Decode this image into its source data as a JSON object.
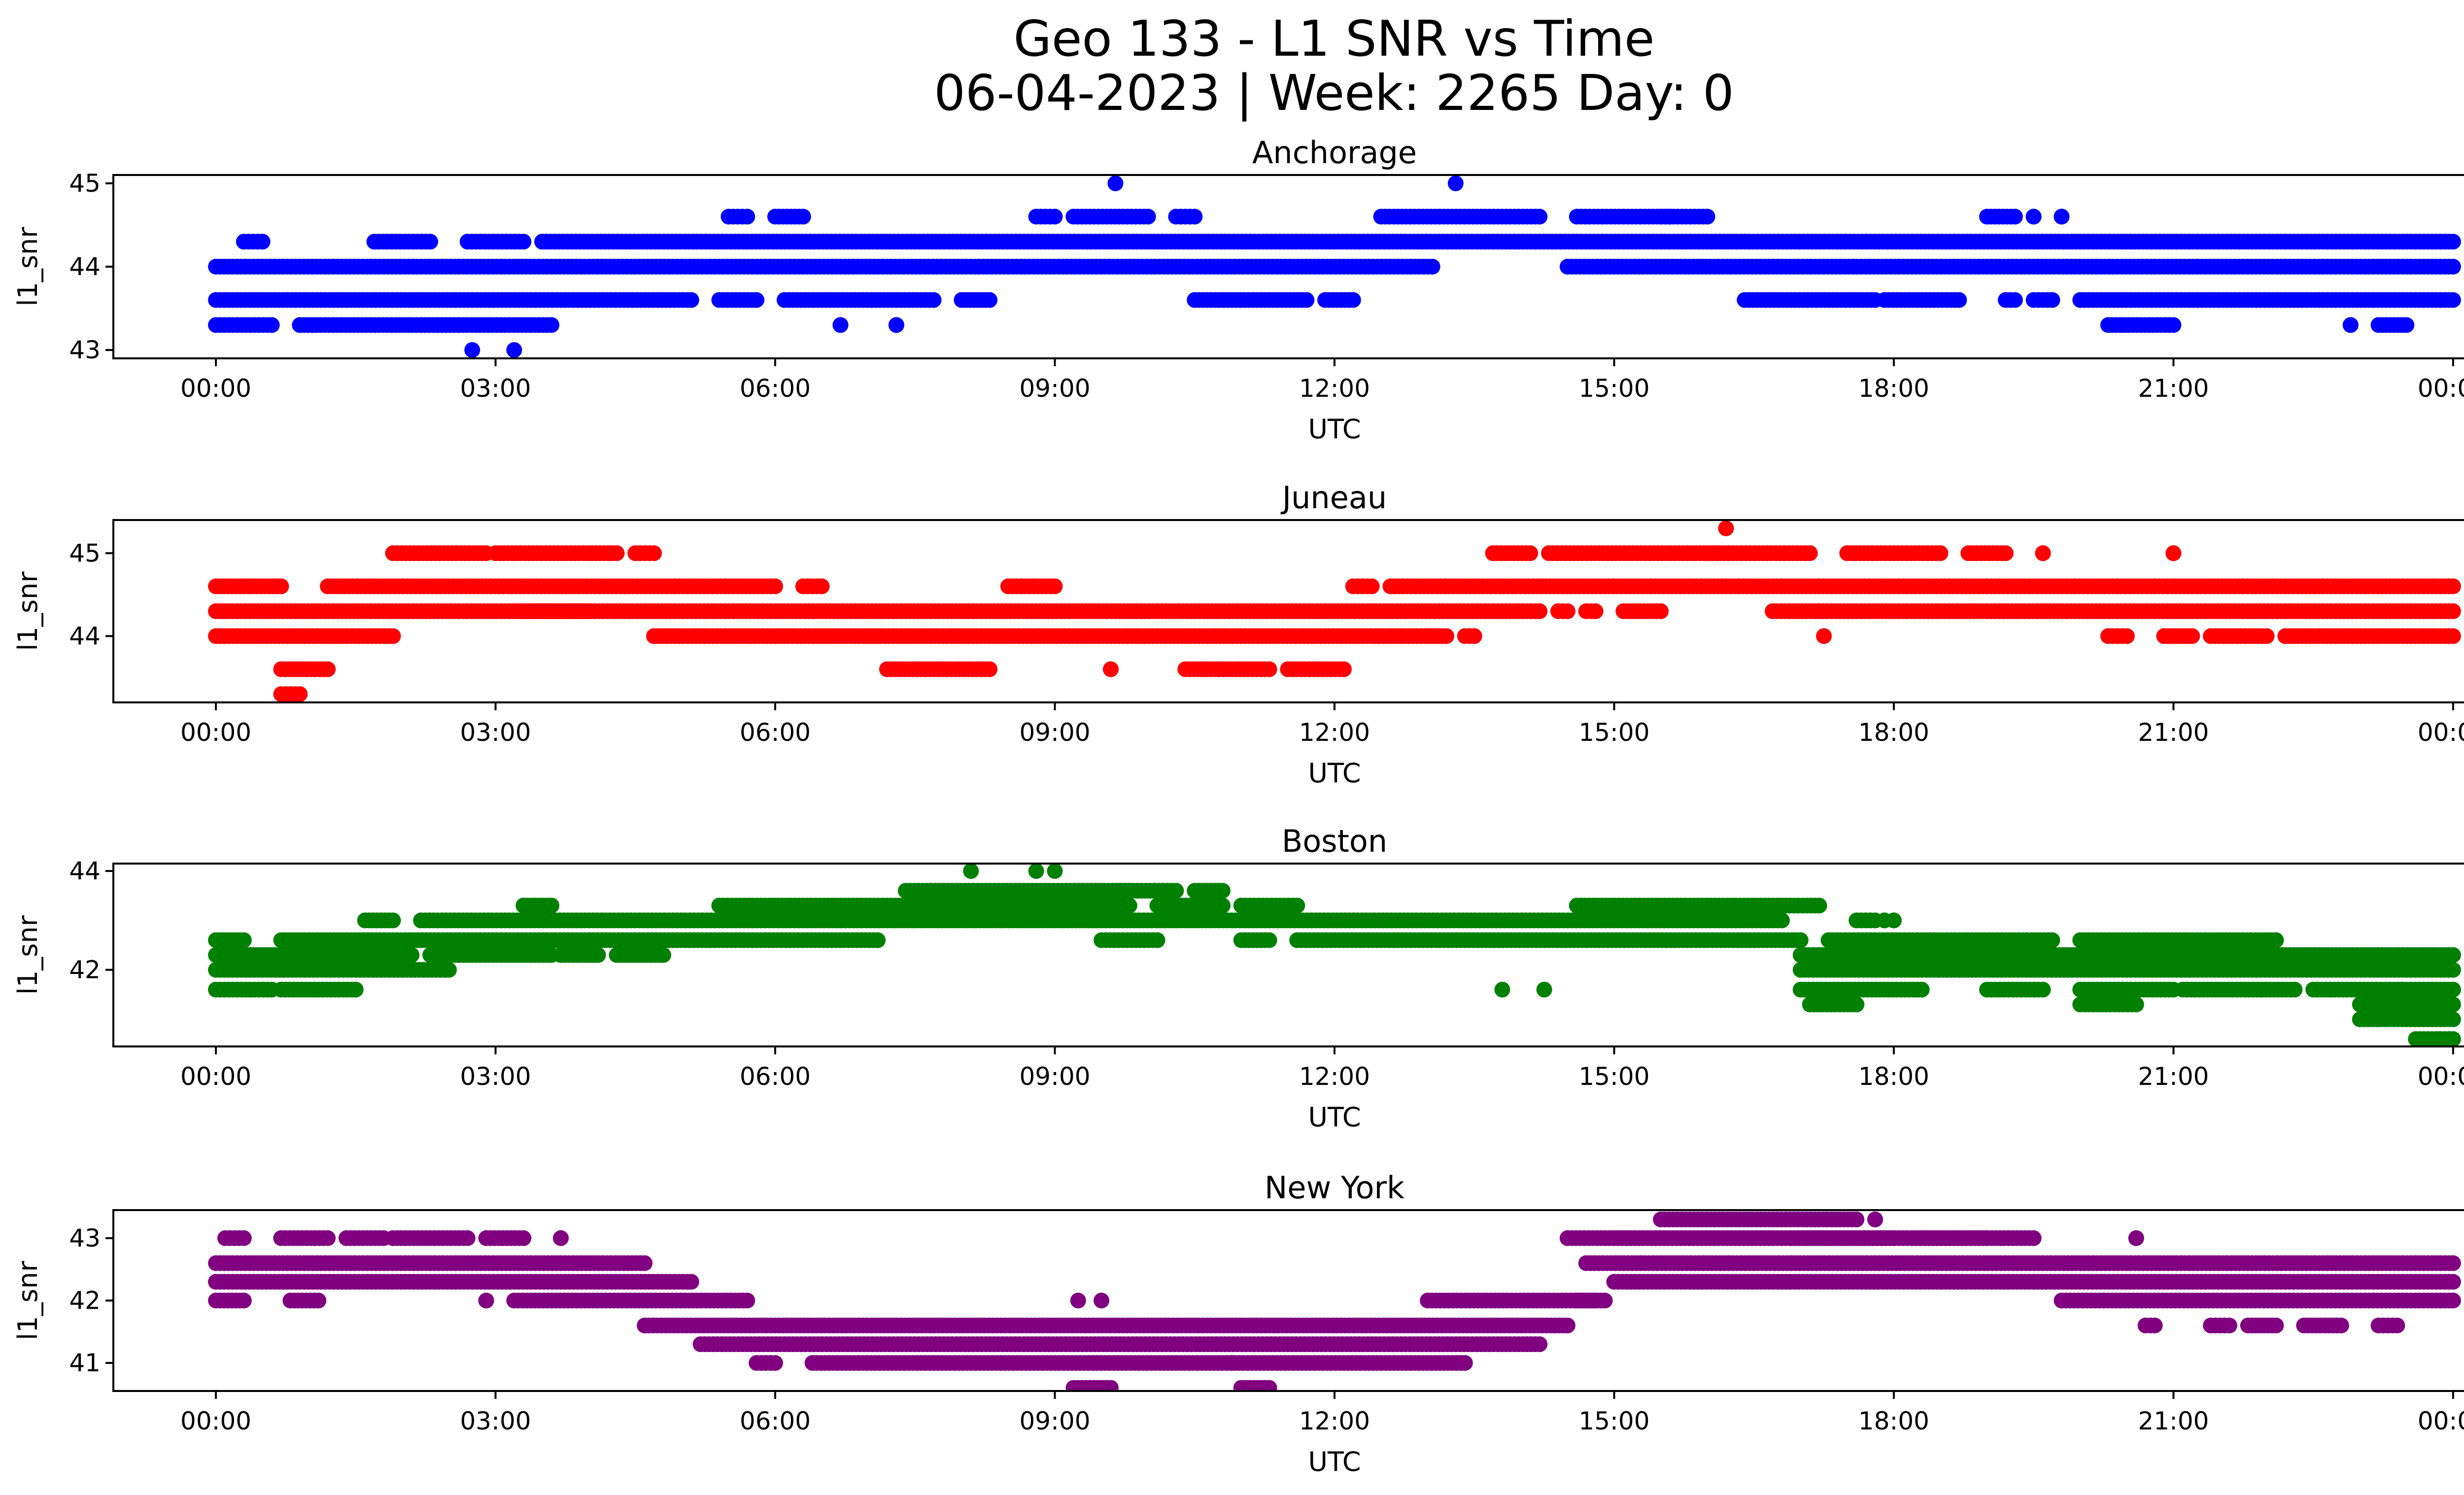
{
  "figure": {
    "title_line1": "Geo 133 - L1 SNR vs Time",
    "title_line2": "06-04-2023 | Week: 2265 Day: 0"
  },
  "chart_data": [
    {
      "type": "scatter",
      "title": "Anchorage",
      "xlabel": "UTC",
      "ylabel": "l1_snr",
      "color": "#0000ff",
      "xlim_hours": [
        -1.1,
        25.1
      ],
      "ylim": [
        42.9,
        45.1
      ],
      "x_ticks": [
        "00:00",
        "03:00",
        "06:00",
        "09:00",
        "12:00",
        "15:00",
        "18:00",
        "21:00",
        "00:00"
      ],
      "y_ticks": [
        43,
        44,
        45
      ],
      "bands": [
        {
          "y": 43.3,
          "segments": [
            [
              0.0,
              0.6
            ],
            [
              0.9,
              2.6
            ],
            [
              2.2,
              3.6
            ],
            [
              6.7,
              6.7
            ],
            [
              7.3,
              7.3
            ],
            [
              20.3,
              21.0
            ],
            [
              22.9,
              22.9
            ],
            [
              23.2,
              23.5
            ]
          ]
        },
        {
          "y": 43.6,
          "segments": [
            [
              0.0,
              5.1
            ],
            [
              5.4,
              5.8
            ],
            [
              6.1,
              7.7
            ],
            [
              8.0,
              8.3
            ],
            [
              10.5,
              11.7
            ],
            [
              11.9,
              12.2
            ],
            [
              16.4,
              17.8
            ],
            [
              17.9,
              18.7
            ],
            [
              19.2,
              19.3
            ],
            [
              19.5,
              19.7
            ],
            [
              20.0,
              24.0
            ]
          ]
        },
        {
          "y": 44.0,
          "segments": [
            [
              0.0,
              13.0
            ],
            [
              14.5,
              24.0
            ]
          ]
        },
        {
          "y": 44.3,
          "segments": [
            [
              0.3,
              0.5
            ],
            [
              1.7,
              2.3
            ],
            [
              2.7,
              3.3
            ],
            [
              3.5,
              24.0
            ]
          ]
        },
        {
          "y": 44.6,
          "segments": [
            [
              5.5,
              5.7
            ],
            [
              6.0,
              6.3
            ],
            [
              8.8,
              9.0
            ],
            [
              9.2,
              10.0
            ],
            [
              10.3,
              10.5
            ],
            [
              12.5,
              14.2
            ],
            [
              14.6,
              15.6
            ],
            [
              15.5,
              16.0
            ],
            [
              19.0,
              19.3
            ],
            [
              19.5,
              19.5
            ],
            [
              19.8,
              19.8
            ]
          ]
        }
      ],
      "points": [
        {
          "x": 2.75,
          "y": 43.0
        },
        {
          "x": 3.2,
          "y": 43.0
        },
        {
          "x": 9.65,
          "y": 45.0
        },
        {
          "x": 13.3,
          "y": 45.0
        },
        {
          "x": 13.05,
          "y": 44.0
        }
      ]
    },
    {
      "type": "scatter",
      "title": "Juneau",
      "xlabel": "UTC",
      "ylabel": "l1_snr",
      "color": "#ff0000",
      "xlim_hours": [
        -1.1,
        25.1
      ],
      "ylim": [
        43.2,
        45.4
      ],
      "x_ticks": [
        "00:00",
        "03:00",
        "06:00",
        "09:00",
        "12:00",
        "15:00",
        "18:00",
        "21:00",
        "00:00"
      ],
      "y_ticks": [
        44,
        45
      ],
      "bands": [
        {
          "y": 43.3,
          "segments": [
            [
              0.7,
              0.9
            ]
          ]
        },
        {
          "y": 43.6,
          "segments": [
            [
              0.7,
              1.2
            ],
            [
              7.2,
              8.3
            ],
            [
              9.6,
              9.6
            ],
            [
              10.4,
              11.3
            ],
            [
              11.5,
              12.1
            ]
          ]
        },
        {
          "y": 44.0,
          "segments": [
            [
              0.0,
              1.9
            ],
            [
              4.7,
              13.2
            ],
            [
              13.4,
              13.5
            ],
            [
              20.3,
              20.5
            ],
            [
              20.9,
              21.2
            ],
            [
              21.4,
              22.0
            ],
            [
              22.2,
              24.0
            ]
          ]
        },
        {
          "y": 44.3,
          "segments": [
            [
              0.0,
              4.0
            ],
            [
              3.3,
              14.2
            ],
            [
              14.4,
              14.5
            ],
            [
              14.7,
              14.8
            ],
            [
              15.1,
              15.5
            ],
            [
              16.7,
              24.0
            ],
            [
              17.2,
              17.2
            ]
          ]
        },
        {
          "y": 44.6,
          "segments": [
            [
              0.0,
              0.7
            ],
            [
              1.2,
              6.0
            ],
            [
              6.3,
              6.5
            ],
            [
              8.5,
              9.0
            ],
            [
              12.2,
              12.4
            ],
            [
              12.6,
              24.0
            ]
          ]
        },
        {
          "y": 45.0,
          "segments": [
            [
              1.9,
              2.9
            ],
            [
              3.0,
              4.3
            ],
            [
              4.5,
              4.7
            ],
            [
              13.7,
              14.1
            ],
            [
              14.3,
              16.1
            ],
            [
              16.0,
              17.1
            ],
            [
              17.5,
              18.5
            ],
            [
              18.8,
              19.2
            ],
            [
              19.6,
              19.6
            ],
            [
              21.0,
              21.0
            ]
          ]
        }
      ],
      "points": [
        {
          "x": 16.2,
          "y": 45.3
        },
        {
          "x": 17.25,
          "y": 44.0
        }
      ]
    },
    {
      "type": "scatter",
      "title": "Boston",
      "xlabel": "UTC",
      "ylabel": "l1_snr",
      "color": "#008000",
      "xlim_hours": [
        -1.1,
        25.1
      ],
      "ylim": [
        40.45,
        44.15
      ],
      "x_ticks": [
        "00:00",
        "03:00",
        "06:00",
        "09:00",
        "12:00",
        "15:00",
        "18:00",
        "21:00",
        "00:00"
      ],
      "y_ticks": [
        42,
        44
      ],
      "bands": [
        {
          "y": 40.6,
          "segments": [
            [
              23.6,
              24.0
            ]
          ]
        },
        {
          "y": 41.0,
          "segments": [
            [
              23.0,
              24.0
            ]
          ]
        },
        {
          "y": 41.3,
          "segments": [
            [
              17.1,
              17.6
            ],
            [
              20.0,
              20.6
            ],
            [
              23.0,
              24.0
            ]
          ]
        },
        {
          "y": 41.6,
          "segments": [
            [
              0.0,
              0.6
            ],
            [
              0.7,
              1.5
            ],
            [
              17.0,
              18.3
            ],
            [
              19.0,
              19.6
            ],
            [
              20.0,
              21.0
            ],
            [
              21.1,
              22.3
            ],
            [
              22.5,
              24.0
            ]
          ]
        },
        {
          "y": 42.0,
          "segments": [
            [
              0.0,
              2.0
            ],
            [
              2.0,
              2.5
            ],
            [
              17.0,
              24.0
            ]
          ]
        },
        {
          "y": 42.3,
          "segments": [
            [
              0.0,
              2.1
            ],
            [
              2.3,
              3.6
            ],
            [
              3.7,
              4.1
            ],
            [
              4.3,
              4.8
            ],
            [
              17.0,
              24.0
            ]
          ]
        },
        {
          "y": 42.6,
          "segments": [
            [
              0.0,
              0.3
            ],
            [
              0.7,
              1.0
            ],
            [
              1.0,
              7.1
            ],
            [
              9.5,
              10.1
            ],
            [
              11.0,
              11.3
            ],
            [
              11.6,
              17.0
            ],
            [
              17.3,
              19.7
            ],
            [
              20.0,
              22.1
            ]
          ]
        },
        {
          "y": 43.0,
          "segments": [
            [
              1.6,
              1.9
            ],
            [
              2.2,
              16.8
            ],
            [
              17.6,
              17.8
            ],
            [
              18.0,
              18.0
            ]
          ]
        },
        {
          "y": 43.3,
          "segments": [
            [
              3.3,
              3.6
            ],
            [
              5.4,
              9.8
            ],
            [
              10.1,
              10.8
            ],
            [
              11.0,
              11.6
            ],
            [
              14.6,
              17.2
            ]
          ]
        },
        {
          "y": 43.6,
          "segments": [
            [
              7.4,
              9.8
            ],
            [
              9.7,
              10.3
            ],
            [
              10.5,
              10.8
            ]
          ]
        }
      ],
      "points": [
        {
          "x": 8.1,
          "y": 44.0
        },
        {
          "x": 8.8,
          "y": 44.0
        },
        {
          "x": 9.0,
          "y": 44.0
        },
        {
          "x": 13.8,
          "y": 41.6
        },
        {
          "x": 14.25,
          "y": 41.6
        },
        {
          "x": 17.9,
          "y": 43.0
        },
        {
          "x": 23.45,
          "y": 41.6
        },
        {
          "x": 23.85,
          "y": 40.6
        }
      ]
    },
    {
      "type": "scatter",
      "title": "New York",
      "xlabel": "UTC",
      "ylabel": "l1_snr",
      "color": "#800080",
      "xlim_hours": [
        -1.1,
        25.1
      ],
      "ylim": [
        40.55,
        43.45
      ],
      "x_ticks": [
        "00:00",
        "03:00",
        "06:00",
        "09:00",
        "12:00",
        "15:00",
        "18:00",
        "21:00",
        "00:00"
      ],
      "y_ticks": [
        41,
        42,
        43
      ],
      "bands": [
        {
          "y": 40.6,
          "segments": [
            [
              9.2,
              9.6
            ],
            [
              11.0,
              11.3
            ]
          ]
        },
        {
          "y": 41.0,
          "segments": [
            [
              5.8,
              6.0
            ],
            [
              6.4,
              13.4
            ]
          ]
        },
        {
          "y": 41.3,
          "segments": [
            [
              5.2,
              14.2
            ]
          ]
        },
        {
          "y": 41.6,
          "segments": [
            [
              4.6,
              14.5
            ],
            [
              20.7,
              20.8
            ],
            [
              21.4,
              21.6
            ],
            [
              21.8,
              22.1
            ],
            [
              22.4,
              22.8
            ],
            [
              23.2,
              23.4
            ]
          ]
        },
        {
          "y": 42.0,
          "segments": [
            [
              0.0,
              0.3
            ],
            [
              0.8,
              1.1
            ],
            [
              2.9,
              2.9
            ],
            [
              3.2,
              5.7
            ],
            [
              13.0,
              14.8
            ],
            [
              14.6,
              14.9
            ],
            [
              19.8,
              24.0
            ]
          ]
        },
        {
          "y": 42.3,
          "segments": [
            [
              0.0,
              5.1
            ],
            [
              15.0,
              24.0
            ]
          ]
        },
        {
          "y": 42.6,
          "segments": [
            [
              0.0,
              4.6
            ],
            [
              14.7,
              24.0
            ]
          ]
        },
        {
          "y": 43.0,
          "segments": [
            [
              0.1,
              0.3
            ],
            [
              0.7,
              1.2
            ],
            [
              1.4,
              1.8
            ],
            [
              1.9,
              2.7
            ],
            [
              2.9,
              3.3
            ],
            [
              3.7,
              3.7
            ],
            [
              14.5,
              19.0
            ],
            [
              15.0,
              16.7
            ],
            [
              16.9,
              18.0
            ],
            [
              18.2,
              19.5
            ],
            [
              20.6,
              20.6
            ]
          ]
        },
        {
          "y": 43.3,
          "segments": [
            [
              15.5,
              17.6
            ],
            [
              17.8,
              17.8
            ]
          ]
        }
      ],
      "points": [
        {
          "x": 9.25,
          "y": 42.0
        },
        {
          "x": 9.5,
          "y": 42.0
        },
        {
          "x": 10.9,
          "y": 41.0
        }
      ]
    }
  ]
}
